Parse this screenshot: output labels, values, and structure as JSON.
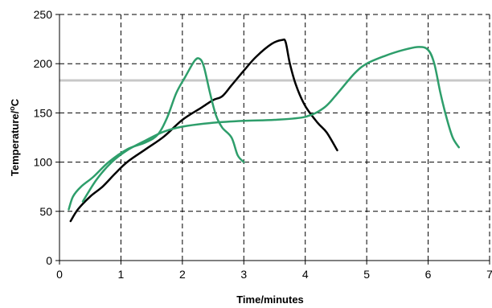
{
  "chart_data": {
    "type": "line",
    "xlabel": "Time/minutes",
    "ylabel_main": "Temperature/",
    "ylabel_sup": "o",
    "ylabel_tail": "C",
    "xlim": [
      0,
      7
    ],
    "ylim": [
      0,
      250
    ],
    "xticks": [
      0,
      1,
      2,
      3,
      4,
      5,
      6,
      7
    ],
    "yticks": [
      0,
      50,
      100,
      150,
      200,
      250
    ],
    "grid": "dashed",
    "reference_line": {
      "y": 183,
      "color": "#c8c8c8"
    },
    "series": [
      {
        "color": "#000000",
        "points": [
          [
            0.18,
            40
          ],
          [
            0.3,
            52
          ],
          [
            0.5,
            65
          ],
          [
            0.7,
            75
          ],
          [
            0.9,
            88
          ],
          [
            1.1,
            100
          ],
          [
            1.4,
            113
          ],
          [
            1.7,
            126
          ],
          [
            2.0,
            143
          ],
          [
            2.3,
            155
          ],
          [
            2.5,
            163
          ],
          [
            2.65,
            167
          ],
          [
            2.8,
            178
          ],
          [
            3.0,
            193
          ],
          [
            3.2,
            207
          ],
          [
            3.45,
            220
          ],
          [
            3.62,
            224
          ],
          [
            3.68,
            222
          ],
          [
            3.75,
            200
          ],
          [
            3.85,
            178
          ],
          [
            4.0,
            157
          ],
          [
            4.2,
            140
          ],
          [
            4.35,
            130
          ],
          [
            4.52,
            112
          ]
        ]
      },
      {
        "color": "#2e9e6b",
        "points": [
          [
            0.15,
            52
          ],
          [
            0.22,
            65
          ],
          [
            0.35,
            75
          ],
          [
            0.55,
            85
          ],
          [
            0.8,
            100
          ],
          [
            1.1,
            113
          ],
          [
            1.4,
            120
          ],
          [
            1.6,
            128
          ],
          [
            1.75,
            145
          ],
          [
            1.9,
            170
          ],
          [
            2.05,
            187
          ],
          [
            2.2,
            203
          ],
          [
            2.28,
            205
          ],
          [
            2.35,
            197
          ],
          [
            2.45,
            170
          ],
          [
            2.55,
            147
          ],
          [
            2.65,
            135
          ],
          [
            2.8,
            125
          ],
          [
            2.9,
            107
          ],
          [
            3.0,
            100
          ]
        ]
      },
      {
        "color": "#2e9e6b",
        "points": [
          [
            0.38,
            60
          ],
          [
            0.6,
            82
          ],
          [
            0.85,
            100
          ],
          [
            1.1,
            112
          ],
          [
            1.4,
            122
          ],
          [
            1.7,
            131
          ],
          [
            2.0,
            136
          ],
          [
            2.5,
            140
          ],
          [
            3.0,
            142
          ],
          [
            3.5,
            143
          ],
          [
            4.0,
            146
          ],
          [
            4.3,
            155
          ],
          [
            4.5,
            168
          ],
          [
            4.8,
            190
          ],
          [
            5.0,
            200
          ],
          [
            5.3,
            208
          ],
          [
            5.6,
            214
          ],
          [
            5.85,
            217
          ],
          [
            6.0,
            214
          ],
          [
            6.1,
            200
          ],
          [
            6.2,
            170
          ],
          [
            6.3,
            145
          ],
          [
            6.4,
            125
          ],
          [
            6.5,
            115
          ]
        ]
      }
    ]
  }
}
